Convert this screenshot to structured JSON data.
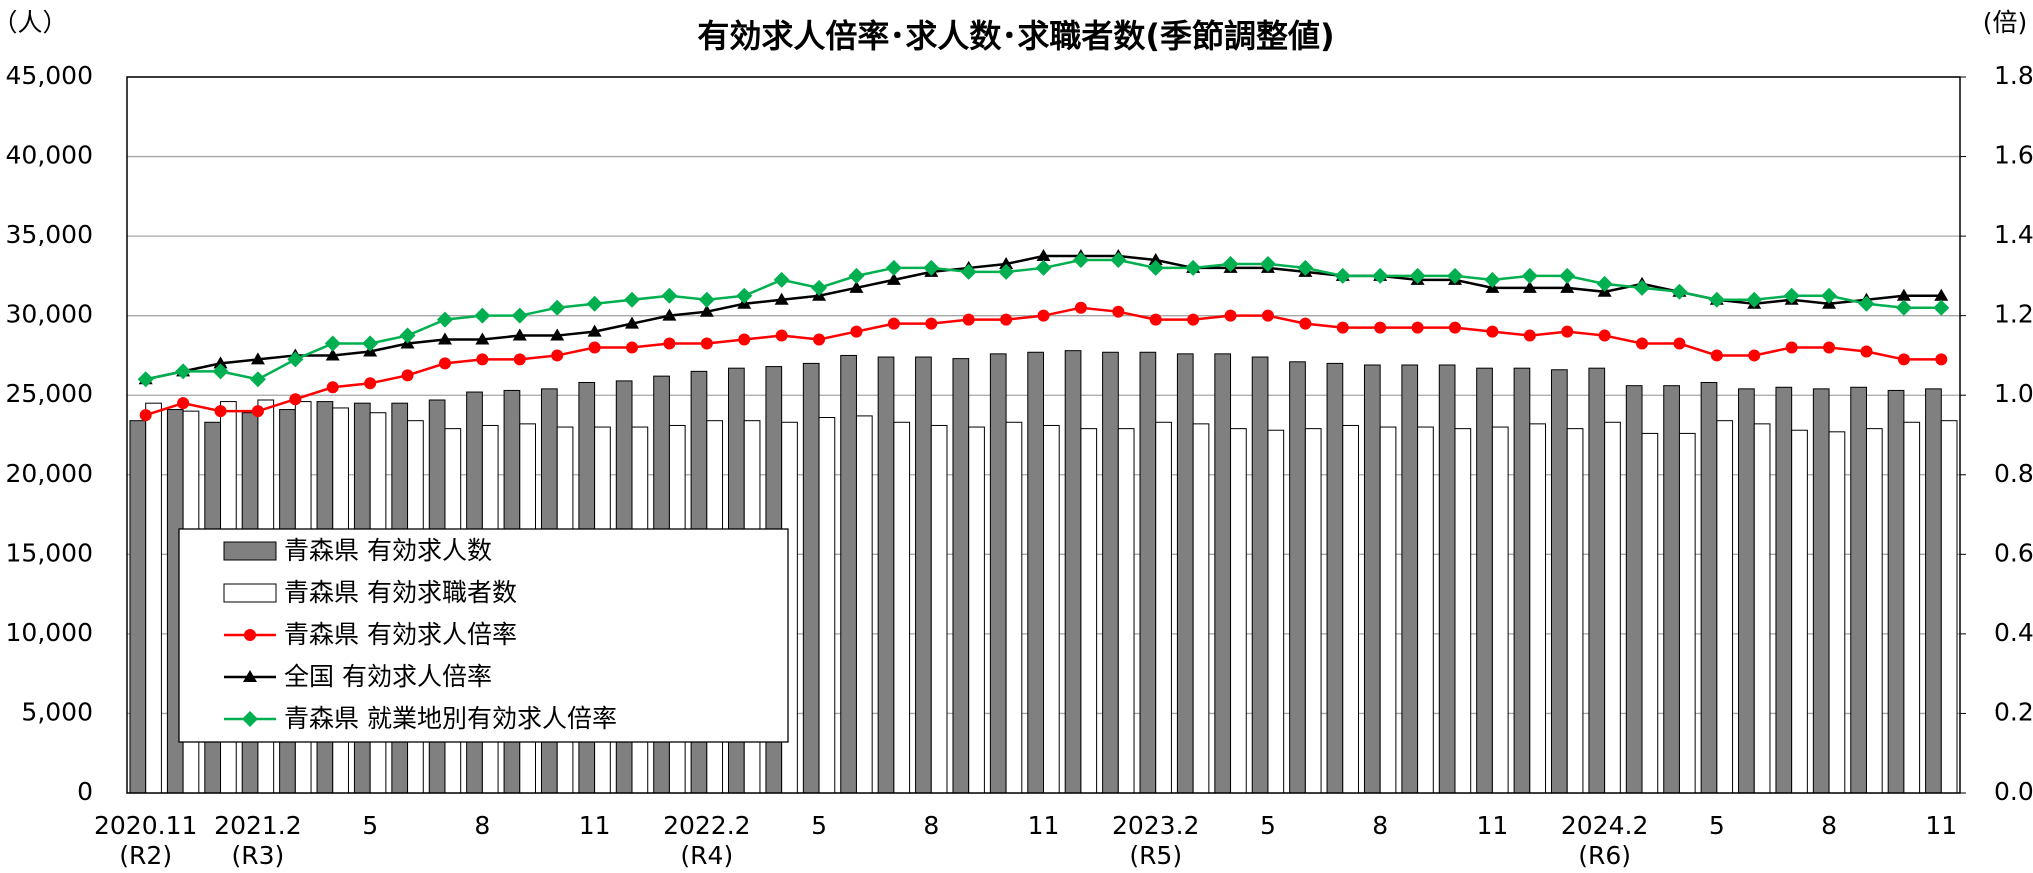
{
  "chart_data": {
    "type": "bar",
    "title": "有効求人倍率･求人数･求職者数(季節調整値)",
    "y_unit": "（人）",
    "y2_unit": "(倍)",
    "categories": [
      "2020.11",
      null,
      null,
      "2021.2",
      null,
      null,
      "5",
      null,
      null,
      "8",
      null,
      null,
      "11",
      null,
      null,
      "2022.2",
      null,
      null,
      "5",
      null,
      null,
      "8",
      null,
      null,
      "11",
      null,
      null,
      "2023.2",
      null,
      null,
      "5",
      null,
      null,
      "8",
      null,
      null,
      "11",
      null,
      null,
      "2024.2",
      null,
      null,
      "5",
      null,
      null,
      "8",
      null,
      null,
      "11"
    ],
    "category_sublabels": [
      "(R2)",
      null,
      null,
      "(R3)",
      null,
      null,
      null,
      null,
      null,
      null,
      null,
      null,
      null,
      null,
      null,
      "(R4)",
      null,
      null,
      null,
      null,
      null,
      null,
      null,
      null,
      null,
      null,
      null,
      "(R5)",
      null,
      null,
      null,
      null,
      null,
      null,
      null,
      null,
      null,
      null,
      null,
      "(R6)",
      null,
      null,
      null,
      null,
      null,
      null,
      null,
      null,
      null
    ],
    "series": [
      {
        "name": "青森県 有効求人数",
        "type": "bar",
        "color": "#808080",
        "values": [
          23400,
          24100,
          23300,
          23900,
          24100,
          24600,
          24500,
          24500,
          24700,
          25200,
          25300,
          25400,
          25800,
          25900,
          26200,
          26500,
          26700,
          26800,
          27000,
          27500,
          27400,
          27400,
          27300,
          27600,
          27700,
          27800,
          27700,
          27700,
          27600,
          27600,
          27400,
          27100,
          27000,
          26900,
          26900,
          26900,
          26700,
          26700,
          26600,
          26700,
          25600,
          25600,
          25800,
          25400,
          25500,
          25400,
          25500,
          25300,
          25400
        ]
      },
      {
        "name": "青森県 有効求職者数",
        "type": "bar",
        "color": "#ffffff",
        "values": [
          24500,
          24000,
          24600,
          24700,
          24600,
          24200,
          23900,
          23400,
          22900,
          23100,
          23200,
          23000,
          23000,
          23000,
          23100,
          23400,
          23400,
          23300,
          23600,
          23700,
          23300,
          23100,
          23000,
          23300,
          23100,
          22900,
          22900,
          23300,
          23200,
          22900,
          22800,
          22900,
          23100,
          23000,
          23000,
          22900,
          23000,
          23200,
          22900,
          23300,
          22600,
          22600,
          23400,
          23200,
          22800,
          22700,
          22900,
          23300,
          23400
        ]
      },
      {
        "name": "青森県 有効求人倍率",
        "type": "line",
        "axis": "y2",
        "marker": "circle",
        "color": "#ff0000",
        "values": [
          0.95,
          0.98,
          0.96,
          0.96,
          0.99,
          1.02,
          1.03,
          1.05,
          1.08,
          1.09,
          1.09,
          1.1,
          1.12,
          1.12,
          1.13,
          1.13,
          1.14,
          1.15,
          1.14,
          1.16,
          1.18,
          1.18,
          1.19,
          1.19,
          1.2,
          1.22,
          1.21,
          1.19,
          1.19,
          1.2,
          1.2,
          1.18,
          1.17,
          1.17,
          1.17,
          1.17,
          1.16,
          1.15,
          1.16,
          1.15,
          1.13,
          1.13,
          1.1,
          1.1,
          1.12,
          1.12,
          1.11,
          1.09,
          1.09
        ]
      },
      {
        "name": "全国 有効求人倍率",
        "type": "line",
        "axis": "y2",
        "marker": "triangle",
        "color": "#000000",
        "values": [
          1.04,
          1.06,
          1.08,
          1.09,
          1.1,
          1.1,
          1.11,
          1.13,
          1.14,
          1.14,
          1.15,
          1.15,
          1.16,
          1.18,
          1.2,
          1.21,
          1.23,
          1.24,
          1.25,
          1.27,
          1.29,
          1.31,
          1.32,
          1.33,
          1.35,
          1.35,
          1.35,
          1.34,
          1.32,
          1.32,
          1.32,
          1.31,
          1.3,
          1.3,
          1.29,
          1.29,
          1.27,
          1.27,
          1.27,
          1.26,
          1.28,
          1.26,
          1.24,
          1.23,
          1.24,
          1.23,
          1.24,
          1.25,
          1.25
        ]
      },
      {
        "name": "青森県 就業地別有効求人倍率",
        "type": "line",
        "axis": "y2",
        "marker": "diamond",
        "color": "#00b050",
        "values": [
          1.04,
          1.06,
          1.06,
          1.04,
          1.09,
          1.13,
          1.13,
          1.15,
          1.19,
          1.2,
          1.2,
          1.22,
          1.23,
          1.24,
          1.25,
          1.24,
          1.25,
          1.29,
          1.27,
          1.3,
          1.32,
          1.32,
          1.31,
          1.31,
          1.32,
          1.34,
          1.34,
          1.32,
          1.32,
          1.33,
          1.33,
          1.32,
          1.3,
          1.3,
          1.3,
          1.3,
          1.29,
          1.3,
          1.3,
          1.28,
          1.27,
          1.26,
          1.24,
          1.24,
          1.25,
          1.25,
          1.23,
          1.22,
          1.22
        ]
      }
    ],
    "ylim": [
      0,
      45000
    ],
    "yticks": [
      0,
      {
        "value": 5000,
        "label": "5,000"
      },
      {
        "value": 10000,
        "label": "10,000"
      },
      {
        "value": 15000,
        "label": "15,000"
      },
      {
        "value": 20000,
        "label": "20,000"
      },
      {
        "value": 25000,
        "label": "25,000"
      },
      {
        "value": 30000,
        "label": "30,000"
      },
      {
        "value": 35000,
        "label": "35,000"
      },
      {
        "value": 40000,
        "label": "40,000"
      },
      {
        "value": 45000,
        "label": "45,000"
      }
    ],
    "y2lim": [
      0,
      1.8
    ],
    "y2ticks": [
      {
        "value": 0,
        "label": "0.0"
      },
      0.2,
      0.4,
      0.6,
      0.8,
      {
        "value": 1,
        "label": "1.0"
      },
      1.2,
      1.4,
      1.6,
      1.8
    ],
    "grid": true,
    "legend": "lower left"
  }
}
